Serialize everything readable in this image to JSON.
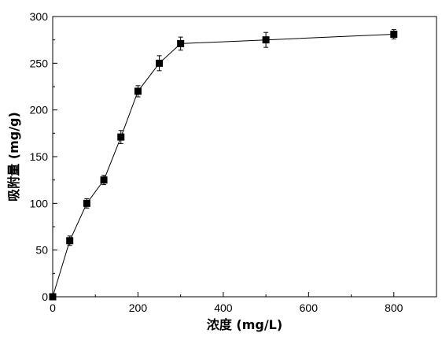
{
  "chart_data": {
    "type": "line",
    "title": "",
    "xlabel": "浓度 (mg/L)",
    "ylabel": "吸附量 (mg/g)",
    "xlim": [
      0,
      900
    ],
    "ylim": [
      0,
      300
    ],
    "xticks": [
      "0",
      "200",
      "400",
      "600",
      "800"
    ],
    "yticks": [
      "0",
      "50",
      "100",
      "150",
      "200",
      "250",
      "300"
    ],
    "grid": false,
    "legend": "none",
    "marker": "square",
    "color": "#000000",
    "series": [
      {
        "x": [
          0,
          40,
          80,
          120,
          160,
          200,
          250,
          300,
          500,
          800
        ],
        "y": [
          0,
          60,
          100,
          125,
          171,
          220,
          250,
          271,
          275,
          281
        ],
        "error": [
          0,
          5,
          5,
          5,
          7,
          6,
          8,
          7,
          8,
          5
        ]
      }
    ]
  }
}
